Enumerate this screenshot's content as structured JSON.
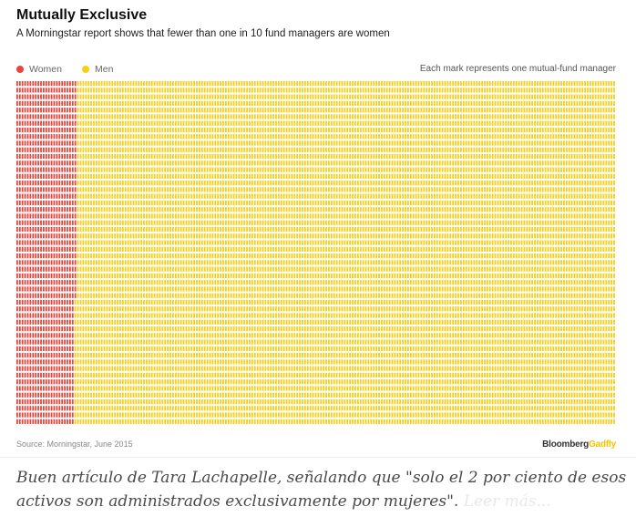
{
  "title": "Mutually Exclusive",
  "subtitle": "A Morningstar report shows that fewer than one in 10 fund managers are women",
  "legend": {
    "women_label": "Women",
    "men_label": "Men",
    "note": "Each mark represents one mutual-fund manager"
  },
  "colors": {
    "women": "#e8453c",
    "men": "#f6cf1a"
  },
  "chart_data": {
    "type": "waffle",
    "columns": 227,
    "rows": 52,
    "series": [
      {
        "name": "Women",
        "count": 1177,
        "color": "#e8453c"
      },
      {
        "name": "Men",
        "count": 10627,
        "color": "#f6cf1a"
      }
    ],
    "unit": "Each mark represents one mutual-fund manager"
  },
  "footer": {
    "source": "Source: Morningstar, June 2015",
    "brand_part1": "Bloomberg",
    "brand_part2": "Gadfly"
  },
  "caption": {
    "text": "Buen artículo de Tara Lachapelle, señalando que \"solo el 2 por ciento de esos activos son administrados exclusivamente por mujeres\".",
    "faded_text": "Leer más..."
  }
}
